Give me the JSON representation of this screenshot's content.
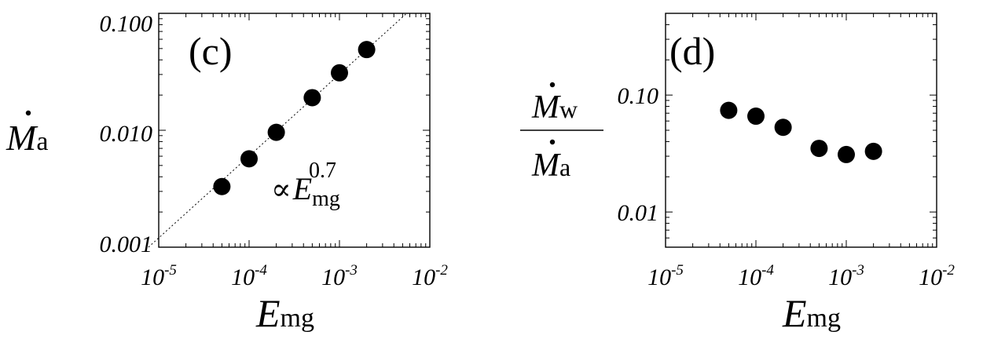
{
  "chart_data": [
    {
      "type": "scatter",
      "panel_label": "(c)",
      "xscale": "log",
      "yscale": "log",
      "xlim": [
        1e-05,
        0.01
      ],
      "ylim": [
        0.001,
        0.1
      ],
      "x_ticks": [
        {
          "base": "10",
          "exp": "-5"
        },
        {
          "base": "10",
          "exp": "-4"
        },
        {
          "base": "10",
          "exp": "-3"
        },
        {
          "base": "10",
          "exp": "-2"
        }
      ],
      "y_ticks": [
        "0.100",
        "0.010",
        "0.001"
      ],
      "xlabel": {
        "main": "E",
        "sub": "mg"
      },
      "ylabel": {
        "main": "M",
        "sub": "a"
      },
      "series": [
        {
          "x": [
            5e-05,
            0.0001,
            0.0002,
            0.0005,
            0.001,
            0.002
          ],
          "y": [
            0.0033,
            0.0057,
            0.0096,
            0.019,
            0.031,
            0.049
          ]
        }
      ],
      "fit_line": {
        "exponent": 0.7,
        "through": [
          0.002,
          0.049
        ]
      },
      "annotation": {
        "symbol": "∝",
        "main": "E",
        "sub": "mg",
        "sup": "0.7"
      }
    },
    {
      "type": "scatter",
      "panel_label": "(d)",
      "xscale": "log",
      "yscale": "log",
      "xlim": [
        1e-05,
        0.01
      ],
      "ylim": [
        0.005,
        0.5
      ],
      "x_ticks": [
        {
          "base": "10",
          "exp": "-5"
        },
        {
          "base": "10",
          "exp": "-4"
        },
        {
          "base": "10",
          "exp": "-3"
        },
        {
          "base": "10",
          "exp": "-2"
        }
      ],
      "y_ticks": [
        "0.10",
        "0.01"
      ],
      "xlabel": {
        "main": "E",
        "sub": "mg"
      },
      "ylabel": {
        "num_main": "M",
        "num_sub": "w",
        "den_main": "M",
        "den_sub": "a"
      },
      "series": [
        {
          "x": [
            5e-05,
            0.0001,
            0.0002,
            0.0005,
            0.001,
            0.002
          ],
          "y": [
            0.074,
            0.066,
            0.053,
            0.035,
            0.031,
            0.033
          ]
        }
      ]
    }
  ]
}
